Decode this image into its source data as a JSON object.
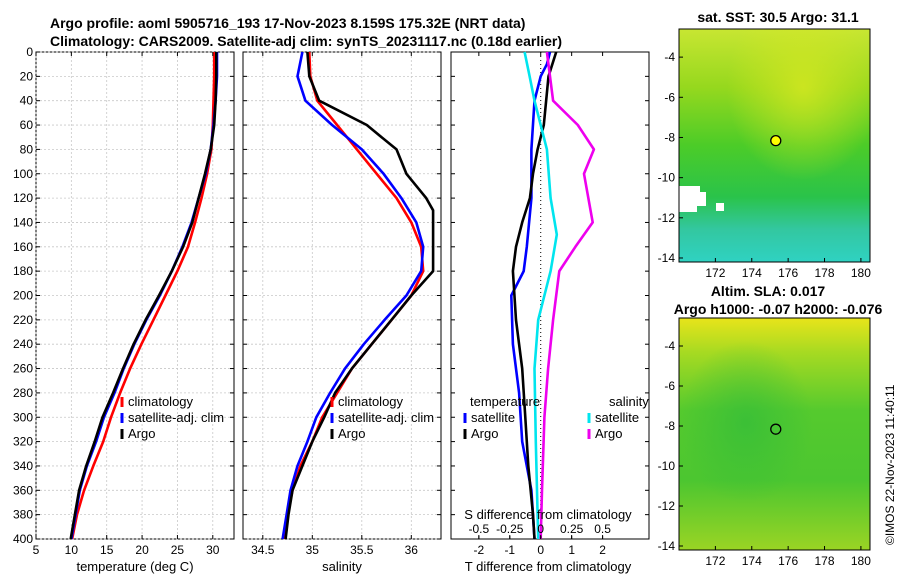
{
  "header": {
    "line1": "Argo profile: aoml 5905716_193 17-Nov-2023 8.159S 175.32E (NRT data)",
    "line2": "Climatology: CARS2009. Satellite-adj clim: synTS_20231117.nc (0.18d earlier)"
  },
  "colors": {
    "climatology": "#ff0000",
    "satellite": "#0000ff",
    "argo": "#000000",
    "sal_satellite": "#00e5ee",
    "sal_argo": "#ee00ee"
  },
  "chart_data": [
    {
      "id": "temperature",
      "type": "line",
      "xlabel": "temperature (deg C)",
      "ylabel": "",
      "xlim": [
        5,
        33
      ],
      "ylim": [
        0,
        400
      ],
      "xticks": [
        5,
        10,
        15,
        20,
        25,
        30
      ],
      "yticks": [
        0,
        20,
        40,
        60,
        80,
        100,
        120,
        140,
        160,
        180,
        200,
        220,
        240,
        260,
        280,
        300,
        320,
        340,
        360,
        380,
        400
      ],
      "grid": true,
      "legend": {
        "position": "lower-right",
        "labels": [
          "climatology",
          "satellite-adj. clim",
          "Argo"
        ]
      },
      "series": [
        {
          "name": "climatology",
          "color": "#ff0000",
          "points": [
            [
              30.2,
              0
            ],
            [
              30.2,
              20
            ],
            [
              30.1,
              40
            ],
            [
              30.0,
              60
            ],
            [
              29.8,
              80
            ],
            [
              29.2,
              100
            ],
            [
              28.4,
              120
            ],
            [
              27.5,
              140
            ],
            [
              26.5,
              160
            ],
            [
              25.0,
              180
            ],
            [
              23.3,
              200
            ],
            [
              21.6,
              220
            ],
            [
              19.9,
              240
            ],
            [
              18.3,
              260
            ],
            [
              16.9,
              280
            ],
            [
              15.6,
              300
            ],
            [
              14.5,
              320
            ],
            [
              13.1,
              340
            ],
            [
              11.8,
              360
            ],
            [
              10.8,
              380
            ],
            [
              10.1,
              400
            ]
          ]
        },
        {
          "name": "satellite-adj. clim",
          "color": "#0000ff",
          "points": [
            [
              30.6,
              0
            ],
            [
              30.6,
              20
            ],
            [
              30.4,
              40
            ],
            [
              30.1,
              60
            ],
            [
              29.7,
              80
            ],
            [
              29.0,
              100
            ],
            [
              28.0,
              120
            ],
            [
              27.0,
              140
            ],
            [
              25.7,
              160
            ],
            [
              24.2,
              180
            ],
            [
              22.5,
              200
            ],
            [
              20.6,
              220
            ],
            [
              18.9,
              240
            ],
            [
              17.4,
              260
            ],
            [
              16.1,
              280
            ],
            [
              14.6,
              300
            ],
            [
              13.5,
              320
            ],
            [
              12.2,
              340
            ],
            [
              11.2,
              360
            ],
            [
              10.6,
              380
            ],
            [
              10.0,
              400
            ]
          ]
        },
        {
          "name": "Argo",
          "color": "#000000",
          "points": [
            [
              30.5,
              0
            ],
            [
              30.5,
              20
            ],
            [
              30.4,
              40
            ],
            [
              30.2,
              60
            ],
            [
              29.7,
              80
            ],
            [
              28.9,
              100
            ],
            [
              28.0,
              120
            ],
            [
              27.1,
              140
            ],
            [
              25.8,
              160
            ],
            [
              24.2,
              180
            ],
            [
              22.4,
              200
            ],
            [
              20.5,
              220
            ],
            [
              18.8,
              240
            ],
            [
              17.3,
              260
            ],
            [
              15.9,
              280
            ],
            [
              14.4,
              300
            ],
            [
              13.3,
              320
            ],
            [
              12.1,
              340
            ],
            [
              11.1,
              360
            ],
            [
              10.5,
              380
            ],
            [
              9.9,
              400
            ]
          ]
        }
      ]
    },
    {
      "id": "salinity",
      "type": "line",
      "xlabel": "salinity",
      "xlim": [
        34.3,
        36.3
      ],
      "ylim": [
        0,
        400
      ],
      "xticks": [
        34.5,
        35,
        35.5,
        36
      ],
      "xticklabels": [
        "34.5",
        "35",
        "35.5",
        "36"
      ],
      "grid": true,
      "legend": {
        "position": "lower-right",
        "labels": [
          "climatology",
          "satellite-adj. clim",
          "Argo"
        ]
      },
      "series": [
        {
          "name": "climatology",
          "color": "#ff0000",
          "points": [
            [
              34.97,
              0
            ],
            [
              34.98,
              20
            ],
            [
              35.05,
              40
            ],
            [
              35.25,
              60
            ],
            [
              35.45,
              80
            ],
            [
              35.65,
              100
            ],
            [
              35.85,
              120
            ],
            [
              36.0,
              140
            ],
            [
              36.1,
              160
            ],
            [
              36.12,
              180
            ],
            [
              36.0,
              200
            ],
            [
              35.8,
              220
            ],
            [
              35.6,
              240
            ],
            [
              35.4,
              260
            ],
            [
              35.25,
              280
            ],
            [
              35.1,
              300
            ],
            [
              35.0,
              320
            ],
            [
              34.88,
              340
            ],
            [
              34.8,
              360
            ],
            [
              34.75,
              380
            ],
            [
              34.72,
              400
            ]
          ]
        },
        {
          "name": "satellite-adj. clim",
          "color": "#0000ff",
          "points": [
            [
              34.9,
              0
            ],
            [
              34.85,
              20
            ],
            [
              34.93,
              40
            ],
            [
              35.2,
              60
            ],
            [
              35.5,
              80
            ],
            [
              35.72,
              100
            ],
            [
              35.9,
              120
            ],
            [
              36.05,
              140
            ],
            [
              36.12,
              160
            ],
            [
              36.1,
              180
            ],
            [
              35.95,
              200
            ],
            [
              35.73,
              220
            ],
            [
              35.52,
              240
            ],
            [
              35.33,
              260
            ],
            [
              35.18,
              280
            ],
            [
              35.04,
              300
            ],
            [
              34.95,
              320
            ],
            [
              34.85,
              340
            ],
            [
              34.78,
              360
            ],
            [
              34.74,
              380
            ],
            [
              34.7,
              400
            ]
          ]
        },
        {
          "name": "Argo",
          "color": "#000000",
          "points": [
            [
              34.95,
              0
            ],
            [
              34.97,
              20
            ],
            [
              35.07,
              40
            ],
            [
              35.55,
              60
            ],
            [
              35.7,
              70
            ],
            [
              35.85,
              80
            ],
            [
              35.95,
              100
            ],
            [
              36.15,
              120
            ],
            [
              36.22,
              130
            ],
            [
              36.22,
              180
            ],
            [
              36.0,
              200
            ],
            [
              35.8,
              220
            ],
            [
              35.6,
              240
            ],
            [
              35.4,
              260
            ],
            [
              35.23,
              280
            ],
            [
              35.12,
              300
            ],
            [
              35.0,
              320
            ],
            [
              34.9,
              340
            ],
            [
              34.8,
              360
            ],
            [
              34.76,
              380
            ],
            [
              34.73,
              400
            ]
          ]
        }
      ]
    },
    {
      "id": "difference",
      "type": "line",
      "xlabel": "T difference from climatology",
      "xlabel_top": "S difference from climatology",
      "xlim": [
        -2.9,
        3.5
      ],
      "ylim": [
        0,
        400
      ],
      "xticks": [
        -2,
        -1,
        0,
        1,
        2
      ],
      "top_ticks": [
        -0.5,
        -0.25,
        0,
        0.25,
        0.5
      ],
      "top_ticklabels": [
        "-0.5",
        "-0.25",
        "0",
        "0.25",
        "0.5"
      ],
      "zero_line": true,
      "legend": {
        "temperature_title": "temperature",
        "salinity_title": "salinity",
        "labels": [
          "satellite",
          "Argo",
          "satellite",
          "Argo"
        ]
      },
      "series": [
        {
          "name": "temperature satellite",
          "color": "#0000ff",
          "points": [
            [
              0.3,
              0
            ],
            [
              0.2,
              10
            ],
            [
              0.0,
              20
            ],
            [
              -0.2,
              40
            ],
            [
              -0.3,
              80
            ],
            [
              -0.3,
              120
            ],
            [
              -0.45,
              160
            ],
            [
              -0.55,
              180
            ],
            [
              -0.95,
              200
            ],
            [
              -0.9,
              240
            ],
            [
              -0.7,
              280
            ],
            [
              -0.6,
              320
            ],
            [
              -0.3,
              360
            ],
            [
              -0.2,
              400
            ]
          ]
        },
        {
          "name": "temperature Argo",
          "color": "#000000",
          "points": [
            [
              0.5,
              0
            ],
            [
              0.25,
              20
            ],
            [
              0.1,
              60
            ],
            [
              -0.1,
              80
            ],
            [
              -0.25,
              100
            ],
            [
              -0.35,
              120
            ],
            [
              -0.6,
              140
            ],
            [
              -0.8,
              160
            ],
            [
              -0.9,
              180
            ],
            [
              -0.8,
              220
            ],
            [
              -0.6,
              260
            ],
            [
              -0.5,
              300
            ],
            [
              -0.4,
              340
            ],
            [
              -0.25,
              380
            ],
            [
              -0.2,
              400
            ]
          ]
        },
        {
          "name": "salinity satellite",
          "color": "#00e5ee",
          "points": [
            [
              -0.13,
              0
            ],
            [
              -0.09,
              20
            ],
            [
              -0.05,
              40
            ],
            [
              0.05,
              80
            ],
            [
              0.08,
              120
            ],
            [
              0.13,
              150
            ],
            [
              0.08,
              180
            ],
            [
              -0.02,
              220
            ],
            [
              -0.05,
              260
            ],
            [
              -0.04,
              320
            ],
            [
              -0.02,
              400
            ]
          ]
        },
        {
          "name": "salinity Argo",
          "color": "#ee00ee",
          "points": [
            [
              0.05,
              0
            ],
            [
              0.1,
              40
            ],
            [
              0.3,
              60
            ],
            [
              0.43,
              80
            ],
            [
              0.35,
              100
            ],
            [
              0.42,
              140
            ],
            [
              0.28,
              160
            ],
            [
              0.15,
              180
            ],
            [
              0.1,
              220
            ],
            [
              0.06,
              260
            ],
            [
              0.03,
              300
            ],
            [
              0.01,
              360
            ],
            [
              0.0,
              400
            ]
          ]
        }
      ]
    },
    {
      "id": "sst-map",
      "type": "heatmap",
      "title": "sat. SST: 30.5 Argo: 31.1",
      "xlim": [
        170,
        180.5
      ],
      "ylim": [
        -14.2,
        -2.6
      ],
      "xticks": [
        172,
        174,
        176,
        178,
        180
      ],
      "yticks": [
        -4,
        -6,
        -8,
        -10,
        -12,
        -14
      ],
      "marker": {
        "lon": 175.32,
        "lat": -8.159,
        "fill": "#ffff00"
      }
    },
    {
      "id": "sla-map",
      "type": "heatmap",
      "title": "Altim. SLA: 0.017",
      "title2": "Argo h1000: -0.07 h2000: -0.076",
      "xlim": [
        170,
        180.5
      ],
      "ylim": [
        -14.2,
        -2.6
      ],
      "xticks": [
        172,
        174,
        176,
        178,
        180
      ],
      "yticks": [
        -4,
        -6,
        -8,
        -10,
        -12,
        -14
      ],
      "marker": {
        "lon": 175.32,
        "lat": -8.159,
        "fill": "none"
      }
    }
  ],
  "credit": "©IMOS 22-Nov-2023 11:40:11"
}
